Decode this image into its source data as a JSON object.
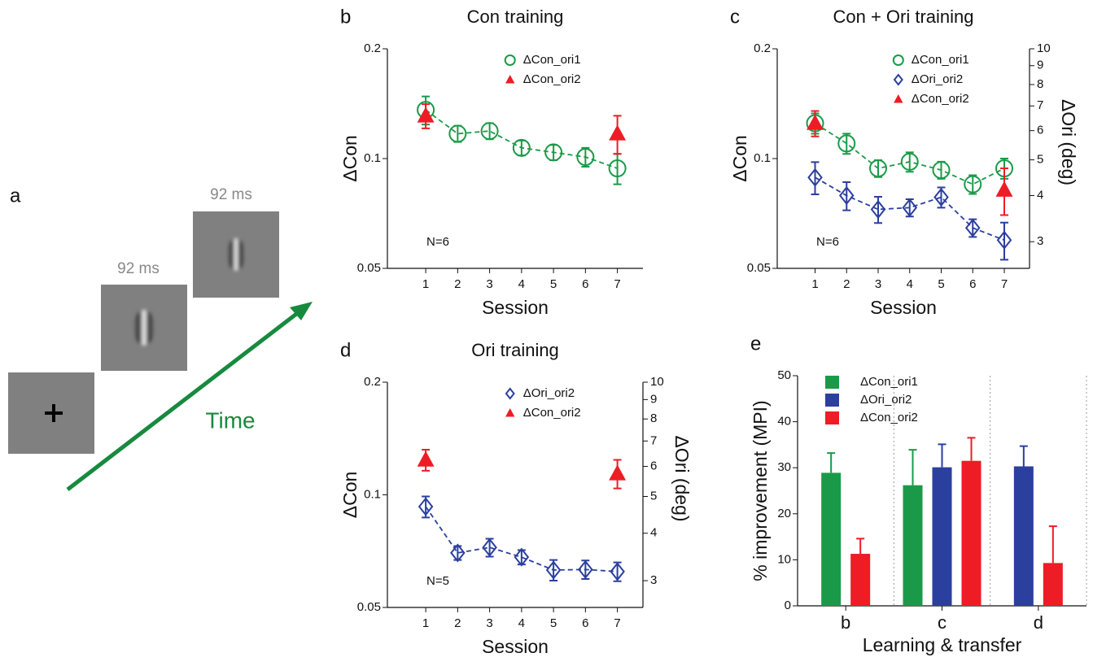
{
  "panel_a": {
    "label": "a",
    "durations": [
      "92 ms",
      "92 ms"
    ],
    "arrow_label": "Time"
  },
  "chart_data": [
    {
      "type": "line",
      "panel_label": "b",
      "title": "Con training",
      "xlabel": "Session",
      "ylabel": "ΔCon",
      "annotation": "N=6",
      "x": [
        1,
        2,
        3,
        4,
        5,
        6,
        7
      ],
      "xlim": [
        -0.2,
        7.8
      ],
      "xticks": [
        1,
        2,
        3,
        4,
        5,
        6,
        7
      ],
      "ylim": [
        0.05,
        0.2
      ],
      "yticks": [
        0.05,
        0.1,
        0.2
      ],
      "yscale": "log",
      "legend": "upper right",
      "series": [
        {
          "name": "ΔCon_ori1",
          "color": "#1a9a48",
          "marker": "circle",
          "linestyle": "dashed",
          "values": [
            0.136,
            0.117,
            0.119,
            0.107,
            0.104,
            0.101,
            0.094
          ],
          "errors": [
            0.012,
            0.006,
            0.006,
            0.005,
            0.005,
            0.006,
            0.009
          ]
        },
        {
          "name": "ΔCon_ori2",
          "color": "#ee1c25",
          "marker": "triangle",
          "linestyle": "none",
          "values": [
            0.131,
            null,
            null,
            null,
            null,
            null,
            0.117
          ],
          "errors": [
            0.01,
            null,
            null,
            null,
            null,
            null,
            0.014
          ]
        }
      ]
    },
    {
      "type": "line",
      "panel_label": "c",
      "title": "Con + Ori training",
      "xlabel": "Session",
      "ylabel": "ΔCon",
      "y2label": "ΔOri (deg)",
      "annotation": "N=6",
      "x": [
        1,
        2,
        3,
        4,
        5,
        6,
        7
      ],
      "xlim": [
        -0.2,
        7.8
      ],
      "xticks": [
        1,
        2,
        3,
        4,
        5,
        6,
        7
      ],
      "ylim": [
        0.05,
        0.2
      ],
      "yticks": [
        0.05,
        0.1,
        0.2
      ],
      "yscale": "log",
      "y2lim": [
        2.54,
        10
      ],
      "y2ticks": [
        3,
        4,
        5,
        6,
        7,
        8,
        9,
        10
      ],
      "y2scale": "log",
      "legend": "upper right",
      "series": [
        {
          "name": "ΔCon_ori1",
          "color": "#1a9a48",
          "marker": "circle",
          "linestyle": "dashed",
          "values": [
            0.125,
            0.11,
            0.094,
            0.098,
            0.093,
            0.085,
            0.094
          ],
          "errors": [
            0.008,
            0.007,
            0.005,
            0.006,
            0.005,
            0.005,
            0.006
          ]
        },
        {
          "name": "ΔOri_ori2",
          "color": "#2b3f9e",
          "marker": "diamond",
          "linestyle": "dashed",
          "axis": "y2",
          "values": [
            4.48,
            4.0,
            3.67,
            3.71,
            3.96,
            3.27,
            3.03
          ],
          "errors": [
            0.45,
            0.35,
            0.3,
            0.2,
            0.25,
            0.18,
            0.35
          ]
        },
        {
          "name": "ΔCon_ori2",
          "color": "#ee1c25",
          "marker": "triangle",
          "linestyle": "none",
          "values": [
            0.125,
            null,
            null,
            null,
            null,
            null,
            0.082
          ],
          "errors": [
            0.01,
            null,
            null,
            null,
            null,
            null,
            0.012
          ]
        }
      ]
    },
    {
      "type": "line",
      "panel_label": "d",
      "title": "Ori training",
      "xlabel": "Session",
      "ylabel": "ΔCon",
      "y2label": "ΔOri (deg)",
      "annotation": "N=5",
      "x": [
        1,
        2,
        3,
        4,
        5,
        6,
        7
      ],
      "xlim": [
        -0.2,
        7.8
      ],
      "xticks": [
        1,
        2,
        3,
        4,
        5,
        6,
        7
      ],
      "ylim": [
        0.05,
        0.2
      ],
      "yticks": [
        0.05,
        0.1,
        0.2
      ],
      "yscale": "log",
      "y2lim": [
        2.55,
        10
      ],
      "y2ticks": [
        3,
        4,
        5,
        6,
        7,
        8,
        9,
        10
      ],
      "y2scale": "log",
      "legend": "upper right",
      "series": [
        {
          "name": "ΔOri_ori2",
          "color": "#2b3f9e",
          "marker": "diamond",
          "linestyle": "dashed",
          "axis": "y2",
          "values": [
            4.7,
            3.55,
            3.67,
            3.46,
            3.2,
            3.21,
            3.17
          ],
          "errors": [
            0.3,
            0.15,
            0.2,
            0.15,
            0.2,
            0.18,
            0.18
          ]
        },
        {
          "name": "ΔCon_ori2",
          "color": "#ee1c25",
          "marker": "triangle",
          "linestyle": "none",
          "values": [
            0.124,
            null,
            null,
            null,
            null,
            null,
            0.114
          ],
          "errors": [
            0.008,
            null,
            null,
            null,
            null,
            null,
            0.01
          ]
        }
      ]
    },
    {
      "type": "bar",
      "panel_label": "e",
      "xlabel": "Learning & transfer",
      "ylabel": "% improvement (MPI)",
      "categories": [
        "b",
        "c",
        "d"
      ],
      "ylim": [
        0,
        50
      ],
      "yticks": [
        0,
        10,
        20,
        30,
        40,
        50
      ],
      "group_separators": true,
      "legend": "upper left",
      "series": [
        {
          "name": "ΔCon_ori1",
          "color": "#1a9a48",
          "values": [
            28.9,
            26.2,
            null
          ],
          "errors": [
            4.3,
            7.7,
            null
          ]
        },
        {
          "name": "ΔOri_ori2",
          "color": "#2b3f9e",
          "values": [
            null,
            30.1,
            30.3
          ],
          "errors": [
            null,
            5.0,
            4.4
          ]
        },
        {
          "name": "ΔCon_ori2",
          "color": "#ee1c25",
          "values": [
            11.3,
            31.5,
            9.3
          ],
          "errors": [
            3.3,
            5.0,
            8.0
          ]
        }
      ]
    }
  ]
}
